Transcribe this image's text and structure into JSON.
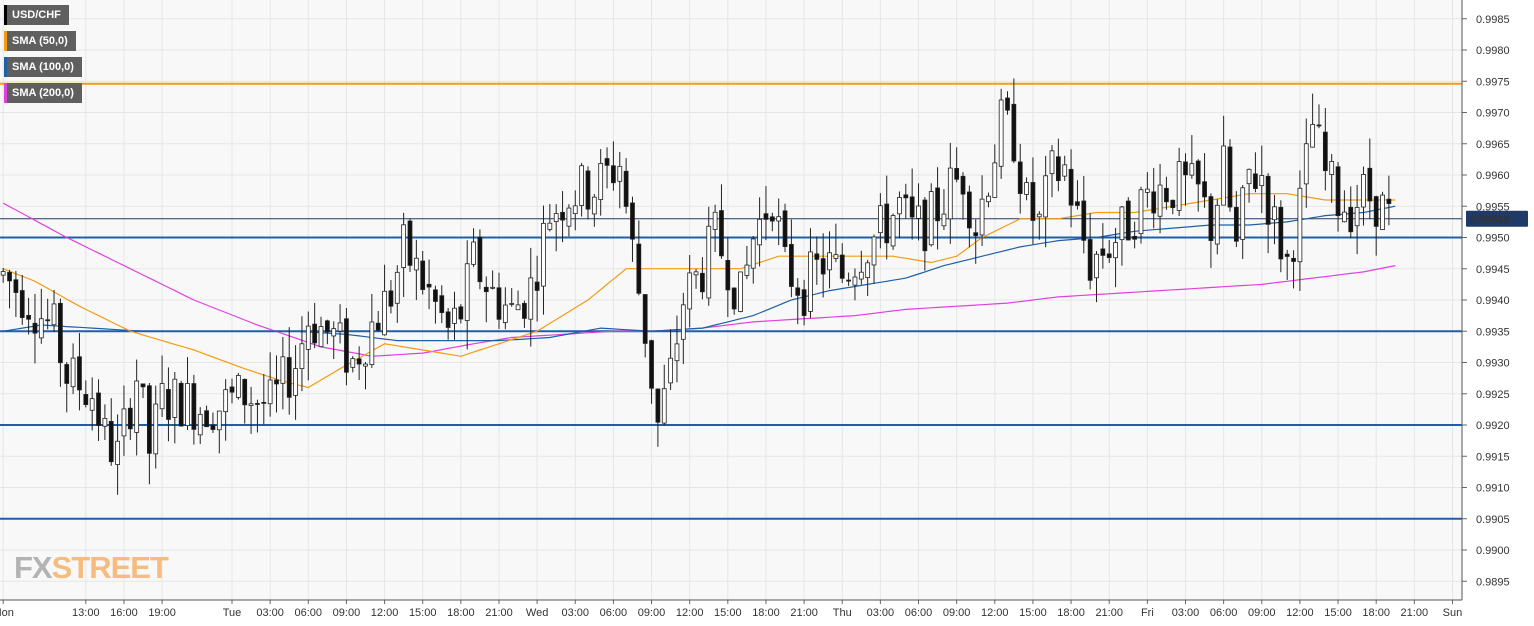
{
  "legend": {
    "items": [
      {
        "label": "USD/CHF",
        "color": "#000000"
      },
      {
        "label": "SMA (50,0)",
        "color": "#f39c12"
      },
      {
        "label": "SMA (100,0)",
        "color": "#1f5fa8"
      },
      {
        "label": "SMA (200,0)",
        "color": "#e040e0"
      }
    ]
  },
  "logo": {
    "fx": "FX",
    "street": "STREET"
  },
  "current_price": {
    "label": "0.99530",
    "value": 0.9953
  },
  "chart_data": {
    "type": "candlestick",
    "title": "",
    "symbol": "USD/CHF",
    "ylim": [
      0.9892,
      0.9988
    ],
    "y_ticks": [
      "0.9985",
      "0.9980",
      "0.9975",
      "0.9970",
      "0.9965",
      "0.9960",
      "0.9955",
      "0.9950",
      "0.9945",
      "0.9940",
      "0.9935",
      "0.9930",
      "0.9925",
      "0.9920",
      "0.9915",
      "0.9910",
      "0.9905",
      "0.9900",
      "0.9895"
    ],
    "x_ticks": [
      {
        "label": "Mon",
        "bar": 0
      },
      {
        "label": "13:00",
        "bar": 13
      },
      {
        "label": "16:00",
        "bar": 19
      },
      {
        "label": "19:00",
        "bar": 25
      },
      {
        "label": "Tue",
        "bar": 36
      },
      {
        "label": "03:00",
        "bar": 42
      },
      {
        "label": "06:00",
        "bar": 48
      },
      {
        "label": "09:00",
        "bar": 54
      },
      {
        "label": "12:00",
        "bar": 60
      },
      {
        "label": "15:00",
        "bar": 66
      },
      {
        "label": "18:00",
        "bar": 72
      },
      {
        "label": "21:00",
        "bar": 78
      },
      {
        "label": "Wed",
        "bar": 84
      },
      {
        "label": "03:00",
        "bar": 90
      },
      {
        "label": "06:00",
        "bar": 96
      },
      {
        "label": "09:00",
        "bar": 102
      },
      {
        "label": "12:00",
        "bar": 108
      },
      {
        "label": "15:00",
        "bar": 114
      },
      {
        "label": "18:00",
        "bar": 120
      },
      {
        "label": "21:00",
        "bar": 126
      },
      {
        "label": "Thu",
        "bar": 132
      },
      {
        "label": "03:00",
        "bar": 138
      },
      {
        "label": "06:00",
        "bar": 144
      },
      {
        "label": "09:00",
        "bar": 150
      },
      {
        "label": "12:00",
        "bar": 156
      },
      {
        "label": "15:00",
        "bar": 162
      },
      {
        "label": "18:00",
        "bar": 168
      },
      {
        "label": "21:00",
        "bar": 174
      },
      {
        "label": "Fri",
        "bar": 180
      },
      {
        "label": "03:00",
        "bar": 186
      },
      {
        "label": "06:00",
        "bar": 192
      },
      {
        "label": "09:00",
        "bar": 198
      },
      {
        "label": "12:00",
        "bar": 204
      },
      {
        "label": "15:00",
        "bar": 210
      },
      {
        "label": "18:00",
        "bar": 216
      },
      {
        "label": "21:00",
        "bar": 222
      },
      {
        "label": "Sun",
        "bar": 228
      }
    ],
    "total_bars": 230,
    "horizontal_levels": [
      {
        "value": 0.99746,
        "color": "#f39c12"
      },
      {
        "value": 0.995,
        "color": "#1f5fa8"
      },
      {
        "value": 0.9935,
        "color": "#1f5fa8"
      },
      {
        "value": 0.992,
        "color": "#1f5fa8"
      },
      {
        "value": 0.9905,
        "color": "#1f5fa8"
      }
    ],
    "current_price_line": 0.9953,
    "anchors": [
      [
        0,
        0.9944
      ],
      [
        4,
        0.994
      ],
      [
        8,
        0.9935
      ],
      [
        10,
        0.9928
      ],
      [
        14,
        0.9925
      ],
      [
        16,
        0.9918
      ],
      [
        18,
        0.9915
      ],
      [
        21,
        0.9928
      ],
      [
        23,
        0.9916
      ],
      [
        25,
        0.9924
      ],
      [
        28,
        0.9924
      ],
      [
        31,
        0.9923
      ],
      [
        34,
        0.9923
      ],
      [
        38,
        0.9925
      ],
      [
        42,
        0.9923
      ],
      [
        46,
        0.993
      ],
      [
        48,
        0.9937
      ],
      [
        52,
        0.9934
      ],
      [
        55,
        0.993
      ],
      [
        58,
        0.9936
      ],
      [
        61,
        0.9941
      ],
      [
        63,
        0.9948
      ],
      [
        66,
        0.9943
      ],
      [
        70,
        0.9935
      ],
      [
        72,
        0.9938
      ],
      [
        74,
        0.9946
      ],
      [
        77,
        0.9941
      ],
      [
        80,
        0.9938
      ],
      [
        83,
        0.9942
      ],
      [
        86,
        0.9954
      ],
      [
        89,
        0.9957
      ],
      [
        93,
        0.9958
      ],
      [
        97,
        0.9962
      ],
      [
        99,
        0.9948
      ],
      [
        101,
        0.9935
      ],
      [
        103,
        0.992
      ],
      [
        105,
        0.9928
      ],
      [
        107,
        0.994
      ],
      [
        110,
        0.9945
      ],
      [
        112,
        0.995
      ],
      [
        114,
        0.9946
      ],
      [
        116,
        0.994
      ],
      [
        118,
        0.995
      ],
      [
        121,
        0.9957
      ],
      [
        123,
        0.9945
      ],
      [
        126,
        0.9942
      ],
      [
        129,
        0.9946
      ],
      [
        132,
        0.9944
      ],
      [
        135,
        0.9948
      ],
      [
        138,
        0.9951
      ],
      [
        141,
        0.9955
      ],
      [
        143,
        0.9951
      ],
      [
        146,
        0.9953
      ],
      [
        149,
        0.9958
      ],
      [
        151,
        0.996
      ],
      [
        153,
        0.9952
      ],
      [
        155,
        0.996
      ],
      [
        157,
        0.9968
      ],
      [
        159,
        0.9966
      ],
      [
        161,
        0.9955
      ],
      [
        163,
        0.9952
      ],
      [
        165,
        0.996
      ],
      [
        167,
        0.9961
      ],
      [
        169,
        0.9953
      ],
      [
        171,
        0.9946
      ],
      [
        173,
        0.9948
      ],
      [
        176,
        0.9951
      ],
      [
        178,
        0.9954
      ],
      [
        181,
        0.9958
      ],
      [
        183,
        0.9958
      ],
      [
        186,
        0.9958
      ],
      [
        188,
        0.9957
      ],
      [
        190,
        0.9952
      ],
      [
        192,
        0.9961
      ],
      [
        194,
        0.9948
      ],
      [
        196,
        0.996
      ],
      [
        198,
        0.996
      ],
      [
        200,
        0.9952
      ],
      [
        202,
        0.9946
      ],
      [
        204,
        0.9955
      ],
      [
        206,
        0.9968
      ],
      [
        208,
        0.996
      ],
      [
        210,
        0.9956
      ],
      [
        212,
        0.9955
      ],
      [
        214,
        0.9957
      ],
      [
        216,
        0.9956
      ],
      [
        218,
        0.9953
      ]
    ],
    "sma50": [
      [
        0,
        0.9945
      ],
      [
        5,
        0.9943
      ],
      [
        12,
        0.9939
      ],
      [
        20,
        0.9935
      ],
      [
        30,
        0.9932
      ],
      [
        38,
        0.9929
      ],
      [
        44,
        0.9927
      ],
      [
        48,
        0.9926
      ],
      [
        53,
        0.9929
      ],
      [
        60,
        0.9933
      ],
      [
        66,
        0.9932
      ],
      [
        72,
        0.9931
      ],
      [
        78,
        0.9933
      ],
      [
        84,
        0.9935
      ],
      [
        92,
        0.994
      ],
      [
        98,
        0.9945
      ],
      [
        104,
        0.9945
      ],
      [
        110,
        0.9945
      ],
      [
        116,
        0.9945
      ],
      [
        122,
        0.9947
      ],
      [
        128,
        0.9947
      ],
      [
        134,
        0.9947
      ],
      [
        140,
        0.9947
      ],
      [
        146,
        0.9946
      ],
      [
        150,
        0.9947
      ],
      [
        154,
        0.995
      ],
      [
        160,
        0.9953
      ],
      [
        166,
        0.9953
      ],
      [
        172,
        0.9954
      ],
      [
        178,
        0.9954
      ],
      [
        184,
        0.9955
      ],
      [
        190,
        0.9956
      ],
      [
        196,
        0.9957
      ],
      [
        202,
        0.9957
      ],
      [
        208,
        0.9956
      ],
      [
        214,
        0.9956
      ],
      [
        219,
        0.9956
      ]
    ],
    "sma100": [
      [
        0,
        0.9935
      ],
      [
        6,
        0.9936
      ],
      [
        14,
        0.99355
      ],
      [
        22,
        0.9935
      ],
      [
        30,
        0.9935
      ],
      [
        38,
        0.9935
      ],
      [
        46,
        0.9935
      ],
      [
        54,
        0.99345
      ],
      [
        62,
        0.99335
      ],
      [
        70,
        0.99335
      ],
      [
        78,
        0.99335
      ],
      [
        86,
        0.9934
      ],
      [
        94,
        0.99355
      ],
      [
        102,
        0.9935
      ],
      [
        110,
        0.99355
      ],
      [
        118,
        0.99375
      ],
      [
        124,
        0.994
      ],
      [
        130,
        0.99415
      ],
      [
        136,
        0.99425
      ],
      [
        142,
        0.99435
      ],
      [
        148,
        0.99455
      ],
      [
        154,
        0.9947
      ],
      [
        160,
        0.99485
      ],
      [
        166,
        0.99495
      ],
      [
        172,
        0.995
      ],
      [
        178,
        0.9951
      ],
      [
        184,
        0.99515
      ],
      [
        190,
        0.9952
      ],
      [
        196,
        0.9952
      ],
      [
        202,
        0.99525
      ],
      [
        208,
        0.99535
      ],
      [
        214,
        0.9954
      ],
      [
        219,
        0.9955
      ]
    ],
    "sma200": [
      [
        0,
        0.99555
      ],
      [
        10,
        0.995
      ],
      [
        20,
        0.9945
      ],
      [
        30,
        0.994
      ],
      [
        40,
        0.9936
      ],
      [
        50,
        0.99325
      ],
      [
        58,
        0.9931
      ],
      [
        66,
        0.99315
      ],
      [
        74,
        0.9933
      ],
      [
        80,
        0.9934
      ],
      [
        88,
        0.99345
      ],
      [
        96,
        0.9935
      ],
      [
        102,
        0.9935
      ],
      [
        110,
        0.99355
      ],
      [
        118,
        0.99365
      ],
      [
        126,
        0.9937
      ],
      [
        134,
        0.99375
      ],
      [
        142,
        0.99385
      ],
      [
        150,
        0.9939
      ],
      [
        158,
        0.99395
      ],
      [
        166,
        0.99405
      ],
      [
        174,
        0.9941
      ],
      [
        182,
        0.99415
      ],
      [
        190,
        0.9942
      ],
      [
        198,
        0.99425
      ],
      [
        206,
        0.99435
      ],
      [
        214,
        0.99445
      ],
      [
        219,
        0.99455
      ]
    ]
  }
}
